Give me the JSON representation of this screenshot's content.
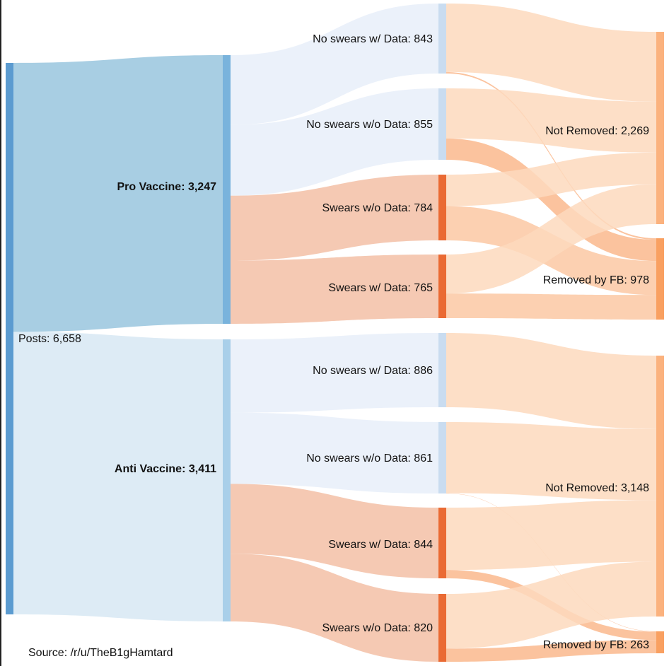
{
  "chart_data": {
    "type": "sankey",
    "source": "Source: /r/u/TheB1gHamtard",
    "nodes": [
      {
        "id": "posts",
        "label": "Posts: 6,658",
        "value": 6658,
        "color": "#5b9bd0",
        "bold": false
      },
      {
        "id": "pro",
        "label": "Pro Vaccine: 3,247",
        "value": 3247,
        "color": "#79b3dc",
        "bold": true
      },
      {
        "id": "anti",
        "label": "Anti Vaccine: 3,411",
        "value": 3411,
        "color": "#a9cfe9",
        "bold": true
      },
      {
        "id": "pro_ns_wd",
        "label": "No swears w/ Data: 843",
        "value": 843,
        "color": "#c9dcf0",
        "bold": false
      },
      {
        "id": "pro_ns_wod",
        "label": "No swears w/o Data: 855",
        "value": 855,
        "color": "#c9dcf0",
        "bold": false
      },
      {
        "id": "pro_s_wod",
        "label": "Swears w/o Data: 784",
        "value": 784,
        "color": "#ea6a33",
        "bold": false
      },
      {
        "id": "pro_s_wd",
        "label": "Swears w/ Data: 765",
        "value": 765,
        "color": "#ea6a33",
        "bold": false
      },
      {
        "id": "anti_ns_wd",
        "label": "No swears w/ Data: 886",
        "value": 886,
        "color": "#c9dcf0",
        "bold": false
      },
      {
        "id": "anti_ns_wod",
        "label": "No swears w/o Data: 861",
        "value": 861,
        "color": "#c9dcf0",
        "bold": false
      },
      {
        "id": "anti_s_wd",
        "label": "Swears w/ Data: 844",
        "value": 844,
        "color": "#ea6a33",
        "bold": false
      },
      {
        "id": "anti_s_wod",
        "label": "Swears w/o Data: 820",
        "value": 820,
        "color": "#ea6a33",
        "bold": false
      },
      {
        "id": "pro_nr",
        "label": "Not Removed: 2,269",
        "value": 2269,
        "color": "#fbb27e",
        "bold": false
      },
      {
        "id": "pro_rm",
        "label": "Removed by FB: 978",
        "value": 978,
        "color": "#f9a061",
        "bold": false
      },
      {
        "id": "anti_nr",
        "label": "Not Removed: 3,148",
        "value": 3148,
        "color": "#fbb27e",
        "bold": false
      },
      {
        "id": "anti_rm",
        "label": "Removed by FB: 263",
        "value": 263,
        "color": "#f9a061",
        "bold": false
      }
    ],
    "links": [
      {
        "source": "posts",
        "target": "pro",
        "value": 3247,
        "color": "#99c5de"
      },
      {
        "source": "posts",
        "target": "anti",
        "value": 3411,
        "color": "#d7e7f3"
      },
      {
        "source": "pro",
        "target": "pro_ns_wd",
        "value": 843,
        "color": "#e7eff9"
      },
      {
        "source": "pro",
        "target": "pro_ns_wod",
        "value": 855,
        "color": "#e7eff9"
      },
      {
        "source": "pro",
        "target": "pro_s_wod",
        "value": 784,
        "color": "#f3bfa6"
      },
      {
        "source": "pro",
        "target": "pro_s_wd",
        "value": 765,
        "color": "#f3bfa6"
      },
      {
        "source": "anti",
        "target": "anti_ns_wd",
        "value": 886,
        "color": "#e7eff9"
      },
      {
        "source": "anti",
        "target": "anti_ns_wod",
        "value": 861,
        "color": "#e7eff9"
      },
      {
        "source": "anti",
        "target": "anti_s_wd",
        "value": 844,
        "color": "#f3bfa6"
      },
      {
        "source": "anti",
        "target": "anti_s_wod",
        "value": 820,
        "color": "#f3bfa6"
      },
      {
        "source": "pro_ns_wd",
        "target": "pro_nr",
        "value": 825,
        "color": "#fdd9bd"
      },
      {
        "source": "pro_ns_wd",
        "target": "pro_rm",
        "value": 18,
        "color": "#fab98d"
      },
      {
        "source": "pro_ns_wod",
        "target": "pro_nr",
        "value": 600,
        "color": "#fdd9bd"
      },
      {
        "source": "pro_ns_wod",
        "target": "pro_rm",
        "value": 255,
        "color": "#fab98d"
      },
      {
        "source": "pro_s_wod",
        "target": "pro_nr",
        "value": 375,
        "color": "#fdd9bd"
      },
      {
        "source": "pro_s_wod",
        "target": "pro_rm",
        "value": 409,
        "color": "#fbc8a3"
      },
      {
        "source": "pro_s_wd",
        "target": "pro_nr",
        "value": 469,
        "color": "#fdd9bd"
      },
      {
        "source": "pro_s_wd",
        "target": "pro_rm",
        "value": 296,
        "color": "#fbc8a3"
      },
      {
        "source": "anti_ns_wd",
        "target": "anti_nr",
        "value": 886,
        "color": "#fdd9bd"
      },
      {
        "source": "anti_ns_wod",
        "target": "anti_nr",
        "value": 857,
        "color": "#fdd9bd"
      },
      {
        "source": "anti_ns_wod",
        "target": "anti_rm",
        "value": 4,
        "color": "#fab98d"
      },
      {
        "source": "anti_s_wd",
        "target": "anti_nr",
        "value": 744,
        "color": "#fdd9bd"
      },
      {
        "source": "anti_s_wd",
        "target": "anti_rm",
        "value": 100,
        "color": "#fab98d"
      },
      {
        "source": "anti_s_wod",
        "target": "anti_nr",
        "value": 661,
        "color": "#fdd9bd"
      },
      {
        "source": "anti_s_wod",
        "target": "anti_rm",
        "value": 159,
        "color": "#fab98d"
      }
    ]
  }
}
